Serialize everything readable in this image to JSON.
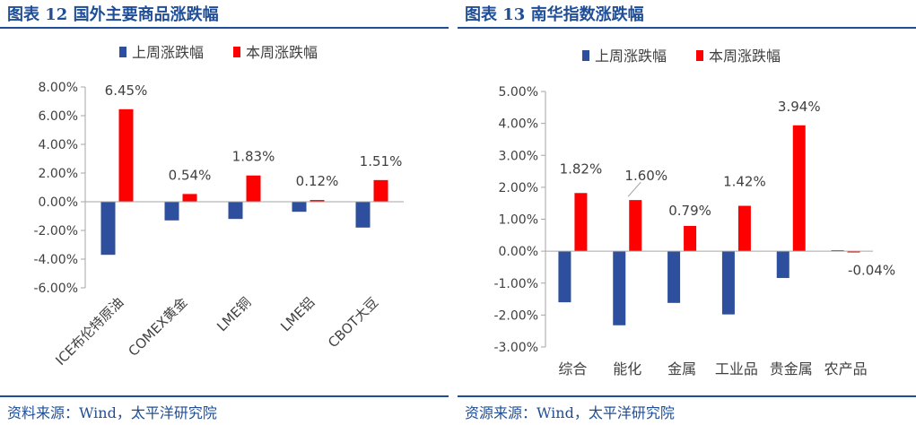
{
  "left": {
    "title": "图表 12 国外主要商品涨跌幅",
    "source": "资料来源：Wind，太平洋研究院",
    "chart_data": {
      "type": "bar",
      "categories": [
        "ICE布伦特原油",
        "COMEX黄金",
        "LME铜",
        "LME铝",
        "CBOT大豆"
      ],
      "series": [
        {
          "name": "上周涨跌幅",
          "values": [
            -3.7,
            -1.3,
            -1.2,
            -0.7,
            -1.8
          ],
          "color": "#2e4f9e"
        },
        {
          "name": "本周涨跌幅",
          "values": [
            6.45,
            0.54,
            1.83,
            0.12,
            1.51
          ],
          "color": "#ff0000"
        }
      ],
      "data_labels": [
        "6.45%",
        "0.54%",
        "1.83%",
        "0.12%",
        "1.51%"
      ],
      "yticks": [
        "8.00%",
        "6.00%",
        "4.00%",
        "2.00%",
        "0.00%",
        "-2.00%",
        "-4.00%",
        "-6.00%"
      ],
      "ylim": [
        -6,
        8
      ],
      "legend": "top-left",
      "grid": false
    }
  },
  "right": {
    "title": "图表 13 南华指数涨跌幅",
    "source": "资源来源：Wind，太平洋研究院",
    "chart_data": {
      "type": "bar",
      "categories": [
        "综合",
        "能化",
        "金属",
        "工业品",
        "贵金属",
        "农产品"
      ],
      "series": [
        {
          "name": "上周涨跌幅",
          "values": [
            -1.6,
            -2.32,
            -1.62,
            -1.98,
            -0.84,
            0.03
          ],
          "color": "#2e4f9e"
        },
        {
          "name": "本周涨跌幅",
          "values": [
            1.82,
            1.6,
            0.79,
            1.42,
            3.94,
            -0.04
          ],
          "color": "#ff0000"
        }
      ],
      "data_labels": [
        "1.82%",
        "1.60%",
        "0.79%",
        "1.42%",
        "3.94%",
        "-0.04%"
      ],
      "yticks": [
        "5.00%",
        "4.00%",
        "3.00%",
        "2.00%",
        "1.00%",
        "0.00%",
        "-1.00%",
        "-2.00%",
        "-3.00%"
      ],
      "ylim": [
        -3,
        5
      ],
      "legend": "top-left",
      "grid": false
    }
  }
}
